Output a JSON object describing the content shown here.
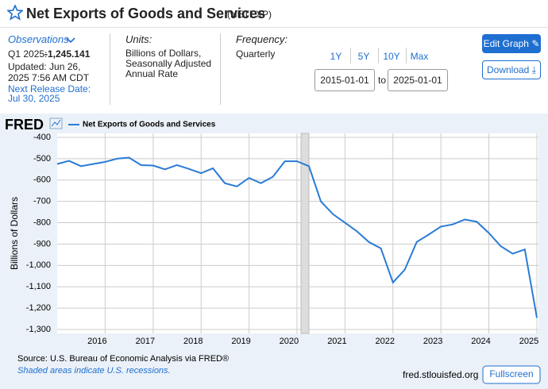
{
  "header": {
    "title": "Net Exports of Goods and Services",
    "series_id": "(NETEXP)"
  },
  "info": {
    "observations_label": "Observations",
    "period": "Q1 2025:",
    "latest_value": "-1,245.141",
    "updated": "Updated: Jun 26, 2025 7:56 AM CDT",
    "next_release_label": "Next Release Date:",
    "next_release": "Jul 30, 2025",
    "units_label": "Units:",
    "units": "Billions of Dollars, Seasonally Adjusted Annual Rate",
    "frequency_label": "Frequency:",
    "frequency": "Quarterly"
  },
  "controls": {
    "ranges": [
      "1Y",
      "5Y",
      "10Y",
      "Max"
    ],
    "start_date": "2015-01-01",
    "to": "to",
    "end_date": "2025-01-01",
    "edit_graph": "Edit Graph",
    "download": "Download",
    "fullscreen": "Fullscreen"
  },
  "footer": {
    "source": "Source: U.S. Bureau of Economic Analysis via FRED®",
    "recession_note": "Shaded areas indicate U.S. recessions.",
    "site": "fred.stlouisfed.org"
  },
  "chart_data": {
    "type": "line",
    "logo": "FRED",
    "ylabel": "Billions of Dollars",
    "x": [
      "2015-01-01",
      "2015-04-01",
      "2015-07-01",
      "2015-10-01",
      "2016-01-01",
      "2016-04-01",
      "2016-07-01",
      "2016-10-01",
      "2017-01-01",
      "2017-04-01",
      "2017-07-01",
      "2017-10-01",
      "2018-01-01",
      "2018-04-01",
      "2018-07-01",
      "2018-10-01",
      "2019-01-01",
      "2019-04-01",
      "2019-07-01",
      "2019-10-01",
      "2020-01-01",
      "2020-04-01",
      "2020-07-01",
      "2020-10-01",
      "2021-01-01",
      "2021-04-01",
      "2021-07-01",
      "2021-10-01",
      "2022-01-01",
      "2022-04-01",
      "2022-07-01",
      "2022-10-01",
      "2023-01-01",
      "2023-04-01",
      "2023-07-01",
      "2023-10-01",
      "2024-01-01",
      "2024-04-01",
      "2024-07-01",
      "2024-10-01",
      "2025-01-01"
    ],
    "series": [
      {
        "name": "Net Exports of Goods and Services",
        "color": "#2a7bd5",
        "values": [
          -525,
          -510,
          -535,
          -525,
          -515,
          -500,
          -495,
          -530,
          -532,
          -550,
          -530,
          -548,
          -568,
          -545,
          -615,
          -630,
          -590,
          -615,
          -585,
          -512,
          -512,
          -535,
          -700,
          -760,
          -800,
          -840,
          -890,
          -920,
          -1080,
          -1020,
          -890,
          -855,
          -818,
          -808,
          -785,
          -795,
          -848,
          -910,
          -945,
          -925,
          -1245.141
        ]
      }
    ],
    "recessions": [
      {
        "start": "2020-02-01",
        "end": "2020-04-01"
      }
    ],
    "xlim": [
      "2015-01-01",
      "2025-01-01"
    ],
    "xticks": [
      "2016",
      "2017",
      "2018",
      "2019",
      "2020",
      "2021",
      "2022",
      "2023",
      "2024",
      "2025"
    ],
    "ylim": [
      -1300,
      -400
    ],
    "yticks": [
      -400,
      -500,
      -600,
      -700,
      -800,
      -900,
      {
        "value": -1000,
        "label": "-1,000"
      },
      {
        "value": -1100,
        "label": "-1,100"
      },
      {
        "value": -1200,
        "label": "-1,200"
      },
      {
        "value": -1300,
        "label": "-1,300"
      }
    ],
    "grid": true
  }
}
